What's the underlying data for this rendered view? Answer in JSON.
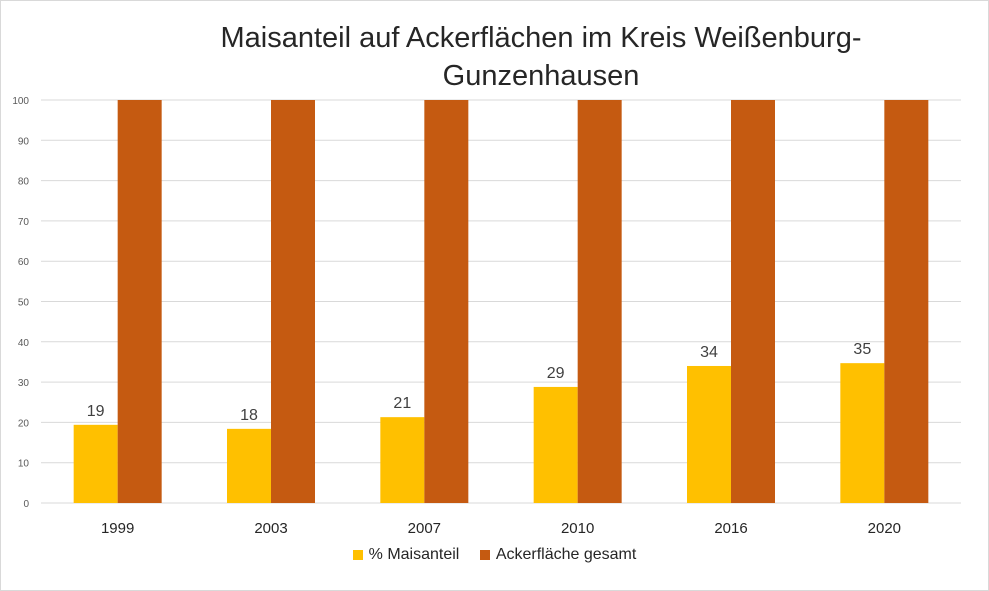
{
  "chart_data": {
    "type": "bar",
    "title": "Maisanteil auf Ackerflächen im Kreis Weißenburg-Gunzenhausen",
    "title_lines": [
      "Maisanteil auf Ackerflächen im Kreis Weißenburg-",
      "Gunzenhausen"
    ],
    "xlabel": "",
    "ylabel": "",
    "ylim": [
      0,
      100
    ],
    "yticks": [
      0,
      10,
      20,
      30,
      40,
      50,
      60,
      70,
      80,
      90,
      100
    ],
    "grid": true,
    "legend_position": "bottom",
    "categories": [
      "1999",
      "2003",
      "2007",
      "2010",
      "2016",
      "2020"
    ],
    "series": [
      {
        "name": "% Maisanteil",
        "color": "#FFC000",
        "values": [
          19.4,
          18.4,
          21.3,
          28.8,
          34.0,
          34.7
        ],
        "data_labels": [
          "19",
          "18",
          "21",
          "29",
          "34",
          "35"
        ]
      },
      {
        "name": "Ackerfläche gesamt",
        "color": "#C55A11",
        "values": [
          100,
          100,
          100,
          100,
          100,
          100
        ]
      }
    ]
  }
}
